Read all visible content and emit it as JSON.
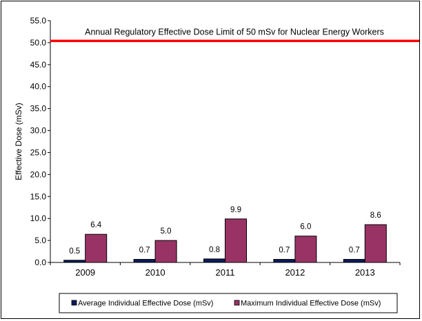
{
  "chart_data": {
    "type": "bar",
    "categories": [
      "2009",
      "2010",
      "2011",
      "2012",
      "2013"
    ],
    "series": [
      {
        "name": "Average Individual Effective Dose (mSv)",
        "values": [
          0.5,
          0.7,
          0.8,
          0.7,
          0.7
        ],
        "labels": [
          "0.5",
          "0.7",
          "0.8",
          "0.7",
          "0.7"
        ],
        "color": "#0a1a5c"
      },
      {
        "name": "Maximum Individual Effective Dose (mSv)",
        "values": [
          6.4,
          5.0,
          9.9,
          6.0,
          8.6
        ],
        "labels": [
          "6.4",
          "5.0",
          "9.9",
          "6.0",
          "8.6"
        ],
        "color": "#993366"
      }
    ],
    "ylabel": "Effective Dose (mSv)",
    "ylim": [
      0.0,
      55.0
    ],
    "yticks": [
      "0.0",
      "5.0",
      "10.0",
      "15.0",
      "20.0",
      "25.0",
      "30.0",
      "35.0",
      "40.0",
      "45.0",
      "50.0",
      "55.0"
    ],
    "reference_line": {
      "value": 50.4,
      "label": "Annual Regulatory Effective Dose Limit of 50 mSv for Nuclear Energy Workers",
      "color": "#ff0000"
    },
    "grid": false,
    "legend": "bottom"
  }
}
